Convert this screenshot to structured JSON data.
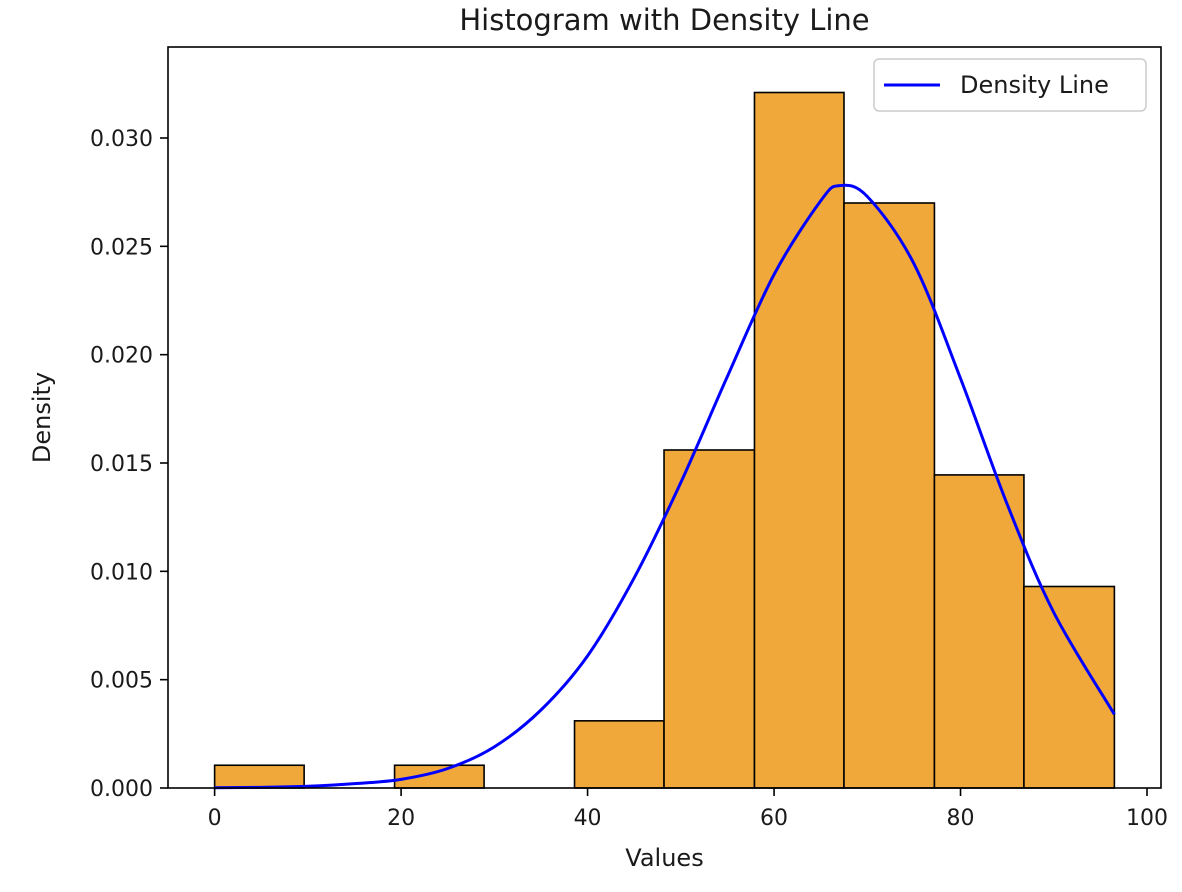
{
  "chart_data": {
    "type": "bar",
    "title": "Histogram with Density Line",
    "xlabel": "Values",
    "ylabel": "Density",
    "xlim": [
      -5,
      101.5
    ],
    "ylim": [
      0,
      0.0342
    ],
    "xticks": [
      0,
      20,
      40,
      60,
      80,
      100
    ],
    "yticks": [
      0.0,
      0.005,
      0.01,
      0.015,
      0.02,
      0.025,
      0.03
    ],
    "grid": false,
    "legend": {
      "placement": "top-right",
      "entries": [
        {
          "label": "Density Line",
          "color": "#0000ff"
        }
      ]
    },
    "histogram": {
      "color": "#f0a83b",
      "edge_color": "#000000",
      "bins": [
        {
          "start": 0.0,
          "end": 9.6,
          "density": 0.00105
        },
        {
          "start": 9.6,
          "end": 19.3,
          "density": 0.0
        },
        {
          "start": 19.3,
          "end": 28.9,
          "density": 0.00105
        },
        {
          "start": 28.9,
          "end": 38.6,
          "density": 0.0
        },
        {
          "start": 38.6,
          "end": 48.2,
          "density": 0.0031
        },
        {
          "start": 48.2,
          "end": 57.9,
          "density": 0.0156
        },
        {
          "start": 57.9,
          "end": 67.5,
          "density": 0.0321
        },
        {
          "start": 67.5,
          "end": 77.2,
          "density": 0.027
        },
        {
          "start": 77.2,
          "end": 86.8,
          "density": 0.01445
        },
        {
          "start": 86.8,
          "end": 96.5,
          "density": 0.0093
        }
      ]
    },
    "series": [
      {
        "name": "Density Line",
        "type": "line",
        "color": "#0000ff",
        "x": [
          0,
          5,
          10,
          15,
          20,
          25,
          30,
          35,
          40,
          45,
          50,
          55,
          60,
          65,
          67,
          70,
          75,
          80,
          85,
          90,
          96.5
        ],
        "y": [
          1e-05,
          3e-05,
          8e-05,
          0.0002,
          0.0004,
          0.0009,
          0.0019,
          0.0036,
          0.0061,
          0.0097,
          0.0141,
          0.019,
          0.0237,
          0.0271,
          0.0278,
          0.0273,
          0.0242,
          0.0189,
          0.0131,
          0.0081,
          0.0034
        ]
      }
    ]
  }
}
